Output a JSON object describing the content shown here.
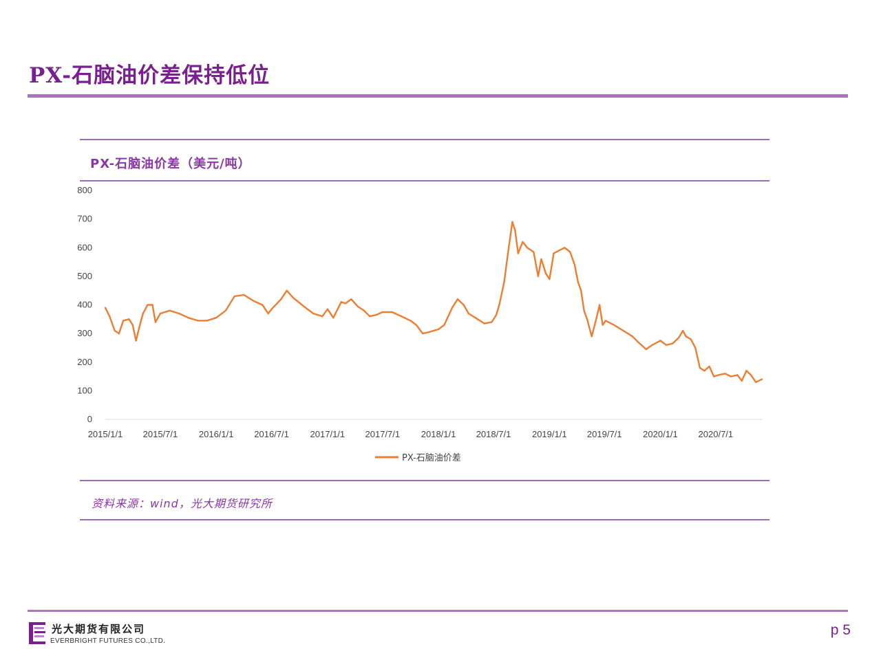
{
  "slide": {
    "title": "PX-石脑油价差保持低位",
    "page": "p 5"
  },
  "chart_heading": "PX-石脑油价差（美元/吨）",
  "source": "资料来源：wind，光大期货研究所",
  "footer": {
    "company_cn": "光大期货有限公司",
    "company_en": "EVERBRIGHT FUTURES CO.,LTD."
  },
  "colors": {
    "brand_purple": "#7a1f8f",
    "rule_purple": "#a873c8",
    "series_orange": "#ed7d31"
  },
  "chart_data": {
    "type": "line",
    "title": "PX-石脑油价差（美元/吨）",
    "xlabel": "",
    "ylabel": "",
    "ylim": [
      0,
      800
    ],
    "yticks": [
      "0",
      "100",
      "200",
      "300",
      "400",
      "500",
      "600",
      "700",
      "800"
    ],
    "xticks": [
      "2015/1/1",
      "2015/7/1",
      "2016/1/1",
      "2016/7/1",
      "2017/1/1",
      "2017/7/1",
      "2018/1/1",
      "2018/7/1",
      "2019/1/1",
      "2019/7/1",
      "2020/1/1",
      "2020/7/1"
    ],
    "xrange": [
      "2015-01-01",
      "2020-11-30"
    ],
    "grid": false,
    "legend_position": "bottom",
    "series": [
      {
        "name": "PX-石脑油价差",
        "color": "#ed7d31",
        "points": [
          [
            "2015-01-01",
            390
          ],
          [
            "2015-01-15",
            360
          ],
          [
            "2015-02-01",
            310
          ],
          [
            "2015-02-15",
            300
          ],
          [
            "2015-03-01",
            345
          ],
          [
            "2015-03-20",
            350
          ],
          [
            "2015-04-01",
            330
          ],
          [
            "2015-04-12",
            275
          ],
          [
            "2015-04-25",
            330
          ],
          [
            "2015-05-05",
            370
          ],
          [
            "2015-05-20",
            400
          ],
          [
            "2015-06-05",
            400
          ],
          [
            "2015-06-15",
            340
          ],
          [
            "2015-07-01",
            370
          ],
          [
            "2015-08-01",
            380
          ],
          [
            "2015-09-01",
            370
          ],
          [
            "2015-10-01",
            355
          ],
          [
            "2015-11-01",
            345
          ],
          [
            "2015-12-01",
            345
          ],
          [
            "2016-01-01",
            355
          ],
          [
            "2016-02-01",
            380
          ],
          [
            "2016-03-01",
            430
          ],
          [
            "2016-04-01",
            435
          ],
          [
            "2016-05-01",
            415
          ],
          [
            "2016-06-01",
            400
          ],
          [
            "2016-06-20",
            370
          ],
          [
            "2016-07-01",
            385
          ],
          [
            "2016-08-01",
            420
          ],
          [
            "2016-08-20",
            450
          ],
          [
            "2016-09-10",
            425
          ],
          [
            "2016-10-15",
            395
          ],
          [
            "2016-11-15",
            370
          ],
          [
            "2016-12-15",
            360
          ],
          [
            "2017-01-01",
            385
          ],
          [
            "2017-01-20",
            355
          ],
          [
            "2017-02-15",
            410
          ],
          [
            "2017-03-01",
            405
          ],
          [
            "2017-03-20",
            420
          ],
          [
            "2017-04-10",
            395
          ],
          [
            "2017-05-01",
            380
          ],
          [
            "2017-05-20",
            360
          ],
          [
            "2017-06-10",
            365
          ],
          [
            "2017-07-01",
            375
          ],
          [
            "2017-08-01",
            375
          ],
          [
            "2017-09-01",
            360
          ],
          [
            "2017-10-01",
            345
          ],
          [
            "2017-10-20",
            330
          ],
          [
            "2017-11-10",
            300
          ],
          [
            "2017-12-01",
            305
          ],
          [
            "2018-01-01",
            315
          ],
          [
            "2018-01-20",
            330
          ],
          [
            "2018-02-15",
            390
          ],
          [
            "2018-03-05",
            420
          ],
          [
            "2018-03-25",
            400
          ],
          [
            "2018-04-10",
            370
          ],
          [
            "2018-05-10",
            350
          ],
          [
            "2018-06-01",
            335
          ],
          [
            "2018-06-25",
            340
          ],
          [
            "2018-07-10",
            365
          ],
          [
            "2018-07-20",
            400
          ],
          [
            "2018-08-05",
            480
          ],
          [
            "2018-08-20",
            600
          ],
          [
            "2018-09-01",
            690
          ],
          [
            "2018-09-10",
            660
          ],
          [
            "2018-09-20",
            580
          ],
          [
            "2018-10-05",
            620
          ],
          [
            "2018-10-20",
            600
          ],
          [
            "2018-11-10",
            585
          ],
          [
            "2018-11-25",
            500
          ],
          [
            "2018-12-05",
            560
          ],
          [
            "2018-12-20",
            510
          ],
          [
            "2019-01-01",
            490
          ],
          [
            "2019-01-15",
            580
          ],
          [
            "2019-02-01",
            590
          ],
          [
            "2019-02-20",
            600
          ],
          [
            "2019-03-10",
            585
          ],
          [
            "2019-03-25",
            540
          ],
          [
            "2019-04-05",
            480
          ],
          [
            "2019-04-15",
            450
          ],
          [
            "2019-04-25",
            380
          ],
          [
            "2019-05-05",
            350
          ],
          [
            "2019-05-20",
            290
          ],
          [
            "2019-06-05",
            355
          ],
          [
            "2019-06-15",
            400
          ],
          [
            "2019-06-25",
            330
          ],
          [
            "2019-07-05",
            345
          ],
          [
            "2019-08-01",
            330
          ],
          [
            "2019-09-01",
            310
          ],
          [
            "2019-10-01",
            290
          ],
          [
            "2019-10-20",
            270
          ],
          [
            "2019-11-15",
            245
          ],
          [
            "2019-12-05",
            260
          ],
          [
            "2020-01-01",
            275
          ],
          [
            "2020-01-20",
            260
          ],
          [
            "2020-02-10",
            265
          ],
          [
            "2020-03-01",
            285
          ],
          [
            "2020-03-15",
            310
          ],
          [
            "2020-03-25",
            290
          ],
          [
            "2020-04-10",
            280
          ],
          [
            "2020-04-25",
            250
          ],
          [
            "2020-05-10",
            180
          ],
          [
            "2020-05-25",
            170
          ],
          [
            "2020-06-10",
            185
          ],
          [
            "2020-06-25",
            150
          ],
          [
            "2020-07-10",
            155
          ],
          [
            "2020-08-01",
            160
          ],
          [
            "2020-08-20",
            150
          ],
          [
            "2020-09-10",
            155
          ],
          [
            "2020-09-25",
            135
          ],
          [
            "2020-10-10",
            170
          ],
          [
            "2020-10-25",
            155
          ],
          [
            "2020-11-10",
            130
          ],
          [
            "2020-11-30",
            140
          ]
        ]
      }
    ]
  }
}
